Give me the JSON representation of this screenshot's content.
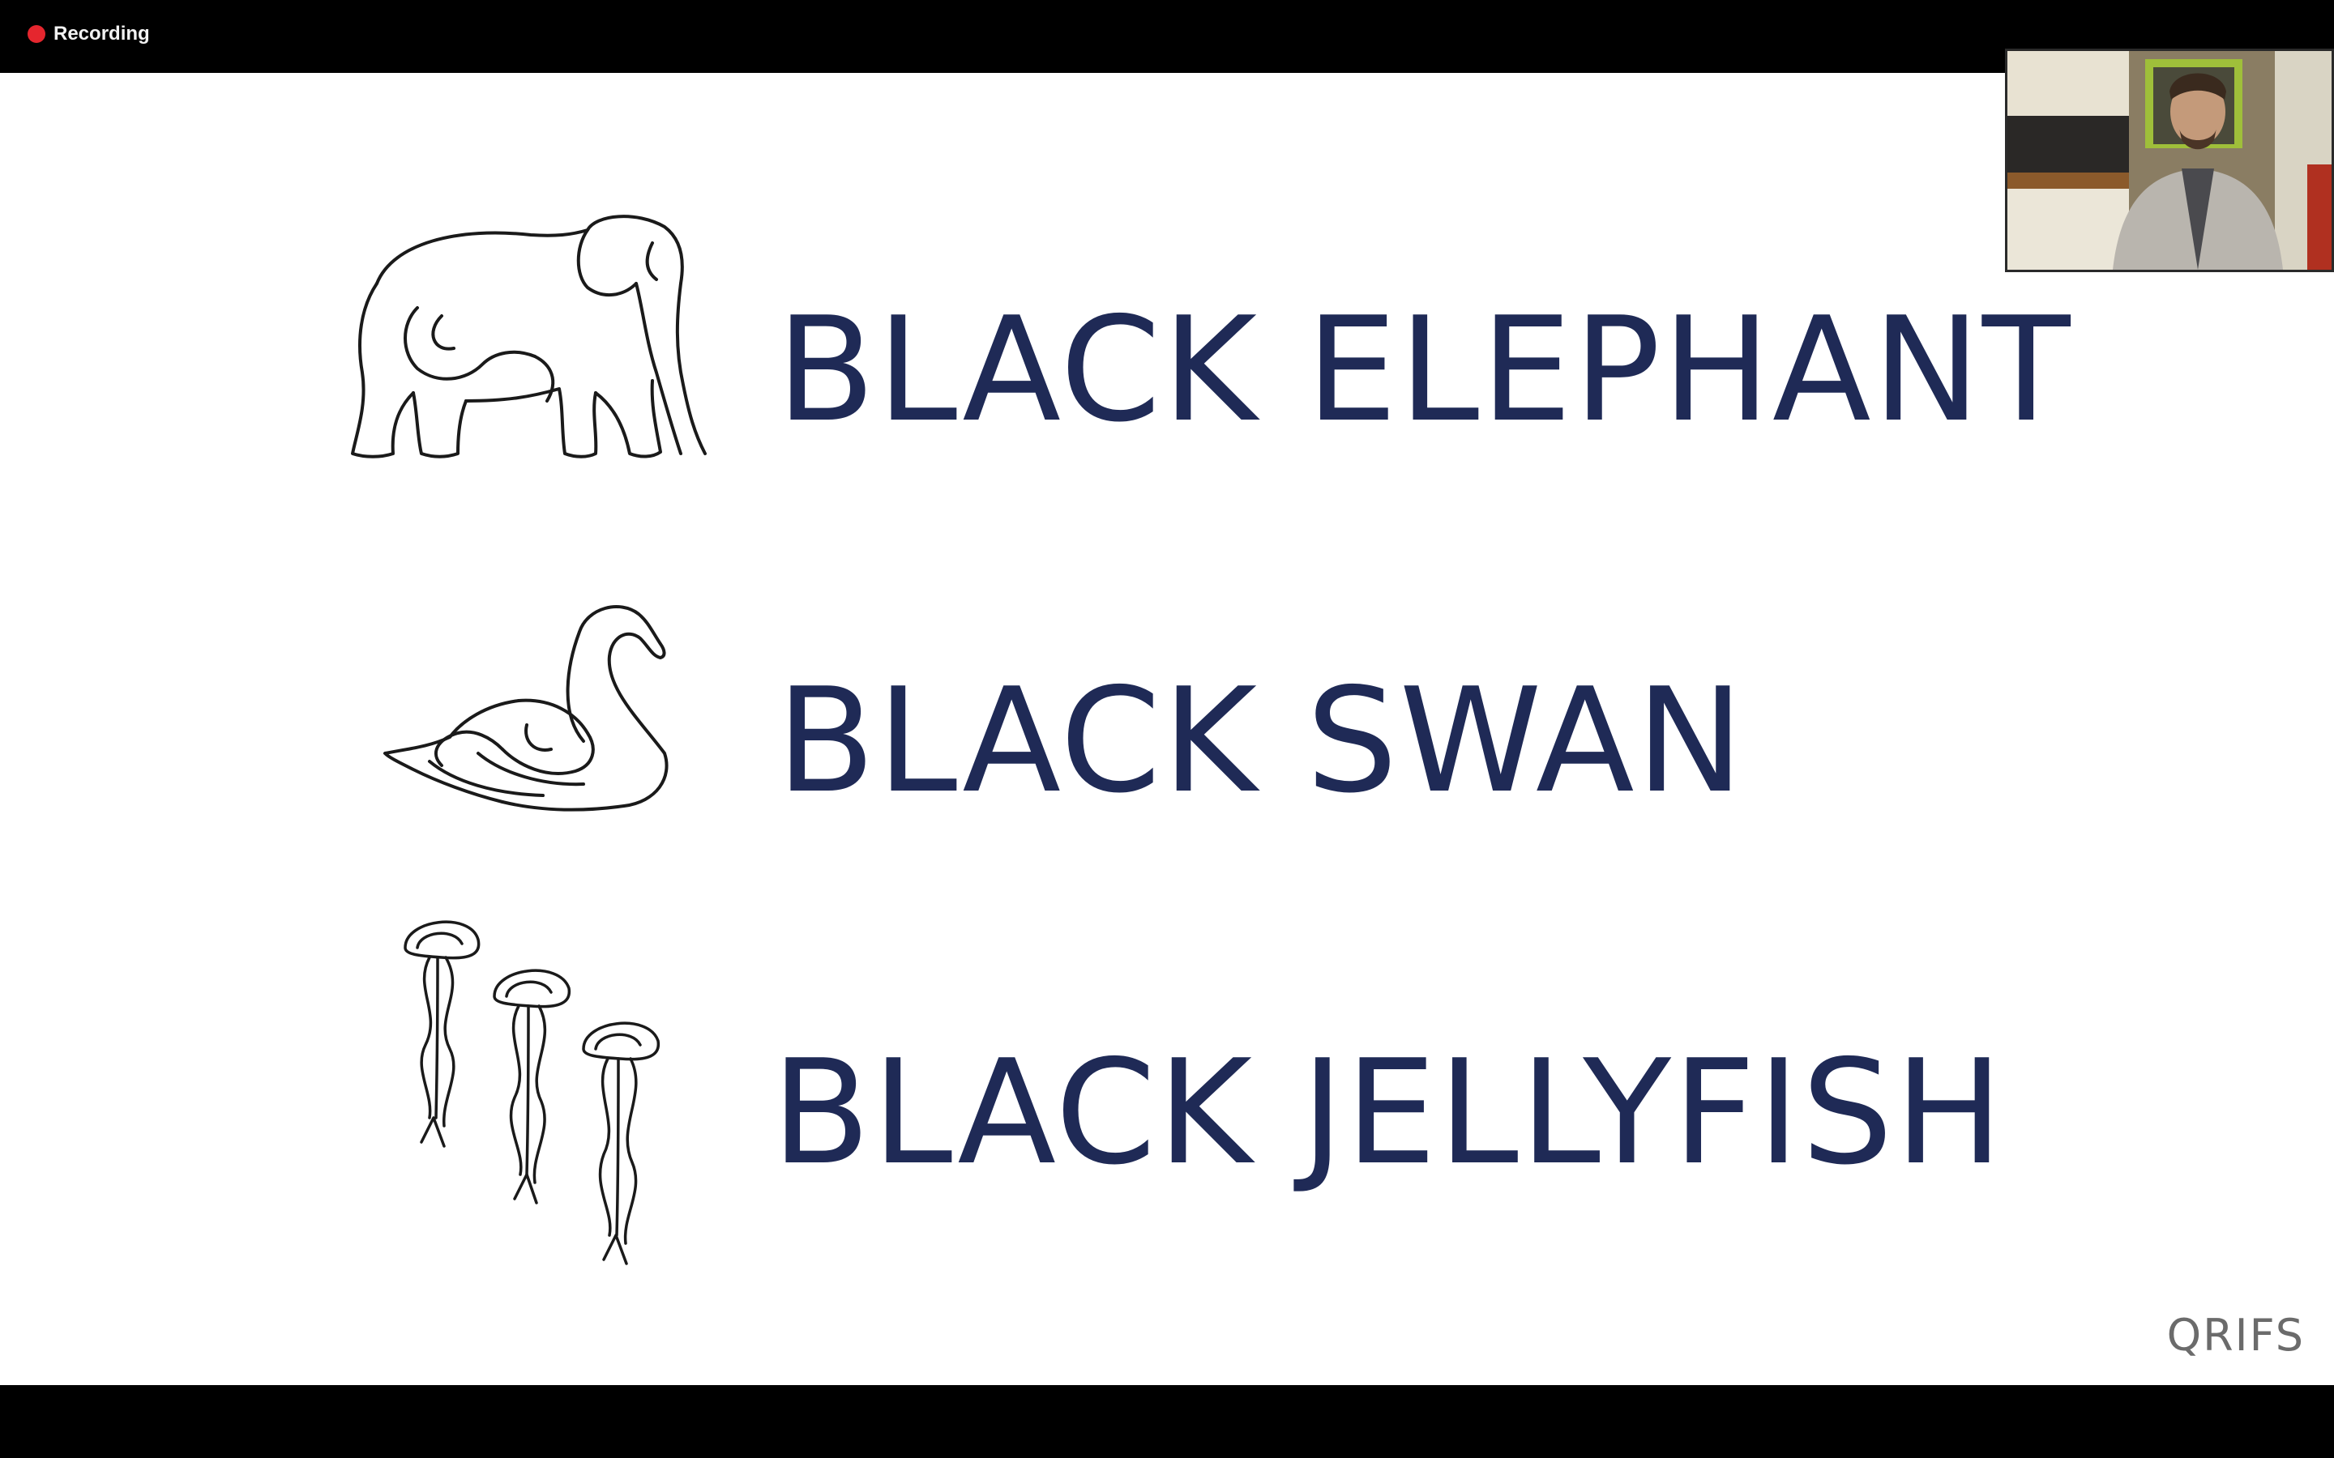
{
  "recording": {
    "label": "Recording",
    "dot_color": "#e5262e"
  },
  "slide": {
    "items": [
      {
        "title": "BLACK ELEPHANT",
        "icon": "elephant-line-art"
      },
      {
        "title": "BLACK SWAN",
        "icon": "swan-line-art"
      },
      {
        "title": "BLACK JELLYFISH",
        "icon": "jellyfish-line-art"
      }
    ],
    "brand": "QRIFS",
    "title_color": "#1f2a56"
  },
  "video_tile": {
    "icon": "participant-video"
  }
}
